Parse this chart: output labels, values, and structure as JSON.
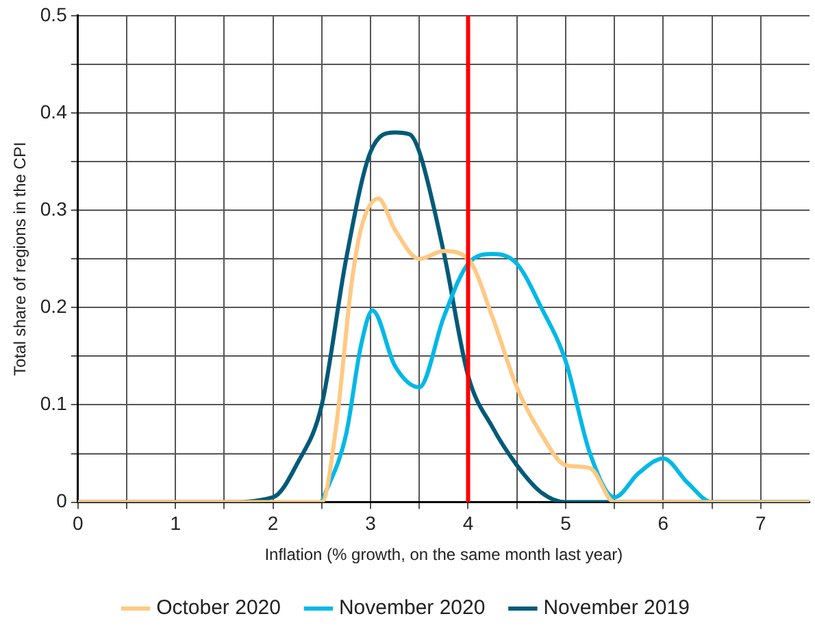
{
  "chart_data": {
    "type": "line",
    "xlabel": "Inflation (% growth, on the same month last year)",
    "ylabel": "Total share of regions in the CPI",
    "xlim": [
      0,
      7.5
    ],
    "ylim": [
      0,
      0.5
    ],
    "xticks": [
      0,
      {
        "value": 0.5,
        "label": null
      },
      1,
      {
        "value": 1.5,
        "label": null
      },
      2,
      {
        "value": 2.5,
        "label": null
      },
      3,
      {
        "value": 3.5,
        "label": null
      },
      4,
      {
        "value": 4.5,
        "label": null
      },
      5,
      {
        "value": 5.5,
        "label": null
      },
      6,
      {
        "value": 6.5,
        "label": null
      },
      7
    ],
    "yticks": [
      0,
      {
        "value": 0.05,
        "label": null
      },
      0.1,
      {
        "value": 0.15,
        "label": null
      },
      0.2,
      {
        "value": 0.25,
        "label": null
      },
      0.3,
      {
        "value": 0.35,
        "label": null
      },
      0.4,
      {
        "value": 0.45,
        "label": null
      },
      0.5
    ],
    "grid": true,
    "legend": "bottom",
    "marker": "none",
    "line_style": "solid",
    "ref_lines": [
      {
        "axis": "x",
        "value": 4,
        "color": "#ff0000"
      }
    ],
    "series": [
      {
        "name": "October 2020",
        "color": "#ffc983",
        "x": [
          0,
          1,
          2,
          2.5,
          2.65,
          2.8,
          2.9,
          3.08,
          3.25,
          3.5,
          3.75,
          4.0,
          4.25,
          4.5,
          4.75,
          5.0,
          5.25,
          5.5,
          6,
          7.5
        ],
        "values": [
          0,
          0,
          0,
          0,
          0.08,
          0.22,
          0.28,
          0.312,
          0.28,
          0.25,
          0.258,
          0.25,
          0.19,
          0.118,
          0.07,
          0.038,
          0.035,
          0,
          0,
          0
        ]
      },
      {
        "name": "November 2020",
        "color": "#00b8e6",
        "x": [
          2.5,
          2.75,
          2.9,
          3.02,
          3.25,
          3.5,
          3.75,
          4.0,
          4.25,
          4.5,
          4.75,
          5.0,
          5.25,
          5.5,
          5.75,
          6.0,
          6.25,
          6.5,
          7.5
        ],
        "values": [
          0,
          0.07,
          0.16,
          0.197,
          0.14,
          0.118,
          0.19,
          0.245,
          0.255,
          0.245,
          0.2,
          0.145,
          0.05,
          0.005,
          0.03,
          0.045,
          0.02,
          0,
          0
        ]
      },
      {
        "name": "November 2019",
        "color": "#005a78",
        "x": [
          0,
          1,
          1.5,
          2.0,
          2.25,
          2.5,
          2.75,
          3.0,
          3.25,
          3.4,
          3.5,
          3.75,
          4.0,
          4.25,
          4.5,
          4.75,
          5.0,
          6,
          7.5
        ],
        "values": [
          0,
          0,
          0,
          0.005,
          0.04,
          0.1,
          0.25,
          0.36,
          0.38,
          0.378,
          0.36,
          0.257,
          0.13,
          0.077,
          0.038,
          0.01,
          0,
          0,
          0
        ]
      }
    ]
  }
}
